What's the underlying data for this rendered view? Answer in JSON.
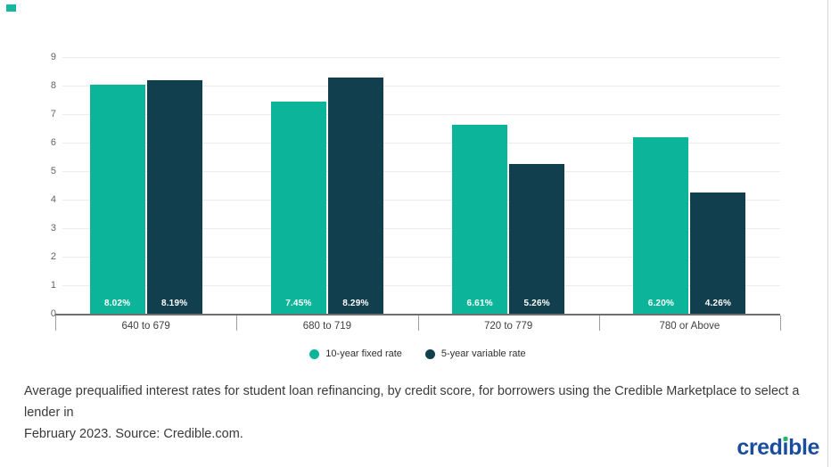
{
  "chart_data": {
    "type": "bar",
    "categories": [
      "640 to 679",
      "680 to 719",
      "720 to 779",
      "780 or Above"
    ],
    "series": [
      {
        "name": "10-year fixed rate",
        "color": "#0cb49a",
        "values": [
          8.02,
          7.45,
          6.61,
          6.2
        ],
        "labels": [
          "8.02%",
          "7.45%",
          "6.61%",
          "6.20%"
        ]
      },
      {
        "name": "5-year variable rate",
        "color": "#113f4d",
        "values": [
          8.19,
          8.29,
          5.26,
          4.26
        ],
        "labels": [
          "8.19%",
          "8.29%",
          "5.26%",
          "4.26%"
        ]
      }
    ],
    "xlabel": "",
    "ylabel": "",
    "ylim": [
      0,
      9
    ],
    "y_ticks": [
      0,
      1,
      2,
      3,
      4,
      5,
      6,
      7,
      8,
      9
    ],
    "grid": true,
    "legend_position": "bottom"
  },
  "legend": {
    "items": [
      {
        "label": "10-year fixed rate",
        "color": "#0cb49a"
      },
      {
        "label": "5-year variable rate",
        "color": "#113f4d"
      }
    ]
  },
  "caption": {
    "line1": "Average prequalified interest rates for student loan refinancing, by credit score, for borrowers using the Credible Marketplace to select a lender in",
    "line2": "February 2023. Source: Credible.com.",
    "full_text": "Average prequalified interest rates for student loan refinancing, by credit score, for borrowers using the Credible Marketplace to select a lender in February 2023. Source: Credible.com."
  },
  "logo": {
    "text": "credible",
    "part_before_i": "cred",
    "dotless_i": "ı",
    "part_after_i": "ble",
    "text_color": "#1a4e9d",
    "dot_color": "#25b56a"
  },
  "decoration": {
    "corner_mark_color": "#14b8a0"
  }
}
